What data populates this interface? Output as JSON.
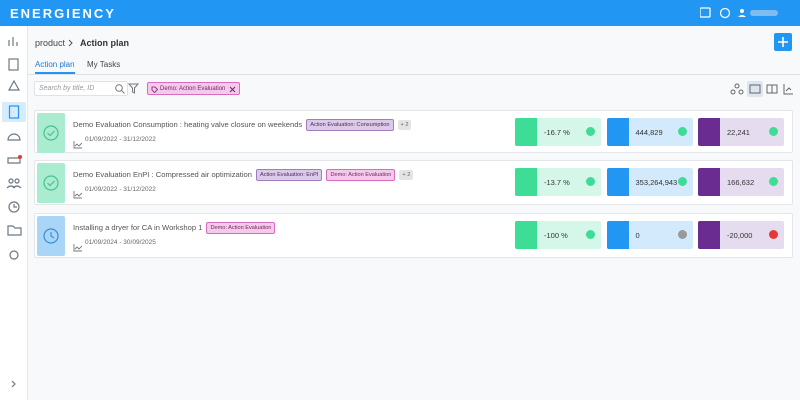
{
  "header": {
    "logo": "ENERGIENCY"
  },
  "breadcrumb": {
    "parent": "product",
    "current": "Action plan"
  },
  "tabs": [
    "Action plan",
    "My Tasks"
  ],
  "search": {
    "placeholder": "Search by title, ID"
  },
  "filter_chip": "Demo: Action Evaluation",
  "actions": [
    {
      "title": "Demo Evaluation Consumption : heating valve closure on weekends",
      "tags": [
        "Action Evaluation: Consumption",
        "+ 2"
      ],
      "dates": "01/09/2022 - 31/12/2022",
      "status": "done",
      "metrics": [
        "-16.7 %",
        "444,829",
        "22,241"
      ]
    },
    {
      "title": "Demo Evaluation EnPI : Compressed air optimization",
      "tags": [
        "Action Evaluation: EnPI",
        "Demo: Action Evaluation",
        "+ 2"
      ],
      "dates": "01/09/2022 - 31/12/2022",
      "status": "done",
      "metrics": [
        "-13.7 %",
        "353,264,943",
        "166,632"
      ]
    },
    {
      "title": "Installing a dryer for CA in Workshop 1",
      "tags": [
        "Demo: Action Evaluation"
      ],
      "dates": "01/09/2024 - 30/09/2025",
      "status": "planned",
      "metrics": [
        "-100 %",
        "0",
        "-20,000"
      ]
    }
  ]
}
